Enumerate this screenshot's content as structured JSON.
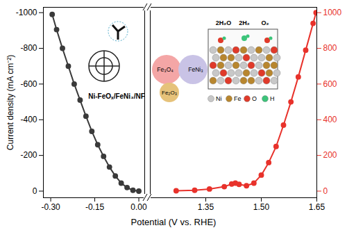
{
  "chart_data": [
    {
      "type": "line",
      "y_label": "Current density (mA cm⁻²)",
      "x_label": "Potential (V vs. RHE)",
      "x": [
        0.0,
        -0.02,
        -0.04,
        -0.06,
        -0.08,
        -0.1,
        -0.12,
        -0.14,
        -0.16,
        -0.18,
        -0.2,
        -0.22,
        -0.24,
        -0.26,
        -0.28,
        -0.295
      ],
      "values": [
        0,
        -5,
        -20,
        -45,
        -85,
        -135,
        -195,
        -260,
        -335,
        -420,
        -510,
        -600,
        -700,
        -800,
        -905,
        -990
      ],
      "color": "#3a3a3a",
      "marker": "circle",
      "xlim": [
        -0.325,
        0.02
      ],
      "xticks": [
        {
          "value": -0.3,
          "label": "-0.30"
        },
        {
          "value": -0.15,
          "label": "-0.15"
        },
        {
          "value": 0,
          "label": "0.00"
        }
      ],
      "ylim": [
        -1030,
        37
      ],
      "yticks": [
        -1000,
        -800,
        -600,
        -400,
        -200,
        0
      ]
    },
    {
      "type": "line",
      "x": [
        1.27,
        1.32,
        1.36,
        1.4,
        1.42,
        1.43,
        1.44,
        1.46,
        1.48,
        1.5,
        1.52,
        1.54,
        1.56,
        1.58,
        1.6,
        1.62,
        1.64,
        1.648
      ],
      "series": [
        {
          "color": "#e8322b",
          "marker": "circle",
          "axis": "y2",
          "values": [
            2,
            5,
            12,
            25,
            40,
            45,
            38,
            30,
            45,
            90,
            160,
            250,
            370,
            500,
            640,
            790,
            940,
            1000
          ]
        }
      ],
      "xlim": [
        1.2,
        1.65
      ],
      "xticks": [
        {
          "value": 1.35,
          "label": "1.35"
        },
        {
          "value": 1.5,
          "label": "1.50"
        },
        {
          "value": 1.65,
          "label": "1.65"
        }
      ],
      "y2lim": [
        -37,
        1030
      ],
      "y2ticks": [
        0,
        200,
        400,
        600,
        800,
        1000
      ],
      "annotations": [
        {
          "text": "Ni-FeOₓ/FeNi₃/NF"
        },
        {
          "text": "Fe₃O₄"
        },
        {
          "text": "FeNi₃"
        },
        {
          "text": "Fe₂O₃"
        },
        {
          "text": "2H₂O"
        },
        {
          "text": "2H₂"
        },
        {
          "text": "O₂"
        }
      ],
      "atoms": [
        {
          "name": "Ni",
          "color": "#c8c8c8"
        },
        {
          "name": "Fe",
          "color": "#b8862e"
        },
        {
          "name": "O",
          "color": "#e03a2a"
        },
        {
          "name": "H",
          "color": "#3cc47a"
        }
      ]
    }
  ]
}
